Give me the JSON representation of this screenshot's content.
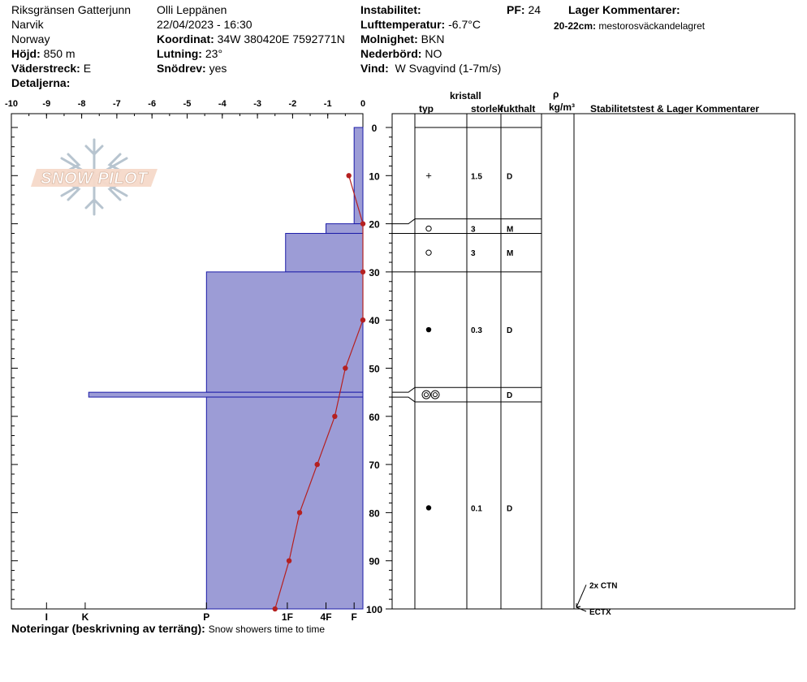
{
  "header": {
    "location": "Riksgränsen Gatterjunn",
    "region": "Narvik",
    "country": "Norway",
    "hojd_label": "Höjd:",
    "hojd_value": "850 m",
    "vaderstreck_label": "Väderstreck:",
    "vaderstreck_value": "E",
    "detaljerna_label": "Detaljerna:",
    "observer": "Olli Leppänen",
    "datetime": "22/04/2023 - 16:30",
    "koordinat_label": "Koordinat:",
    "koordinat_value": "34W 380420E 7592771N",
    "lutning_label": "Lutning:",
    "lutning_value": "23°",
    "snodrev_label": "Snödrev:",
    "snodrev_value": "yes",
    "instabilitet_label": "Instabilitet:",
    "lufttemperatur_label": "Lufttemperatur:",
    "lufttemperatur_value": "-6.7°C",
    "molnighet_label": "Molnighet:",
    "molnighet_value": "BKN",
    "nederbord_label": "Nederbörd:",
    "nederbord_value": "NO",
    "vind_label": "Vind:",
    "vind_value": "W Svagvind (1-7m/s)",
    "pf_label": "PF:",
    "pf_value": "24",
    "lager_kommentarer_label": "Lager Kommentarer:",
    "lager_kommentar_depth": "20-22cm:",
    "lager_kommentar_text": "mestorosväckandelagret"
  },
  "logo": {
    "text": "SNOW PILOT"
  },
  "table_headers": {
    "kristall": "kristall",
    "typ": "typ",
    "storlek": "storlek",
    "fukthalt": "fukthalt",
    "rho": "ρ",
    "density_unit": "kg/m³",
    "stabilitet": "Stabilitetstest & Lager Kommentarer"
  },
  "footer": {
    "noteringar_label": "Noteringar (beskrivning av terräng):",
    "noteringar_value": "Snow showers time to time"
  },
  "chart_data": {
    "type": "snow-profile",
    "temperature_axis": {
      "label": "",
      "ticks": [
        -10,
        -9,
        -8,
        -7,
        -6,
        -5,
        -4,
        -3,
        -2,
        -1,
        0
      ],
      "range": [
        -10,
        0
      ]
    },
    "depth_axis": {
      "range": [
        0,
        100
      ],
      "ticks": [
        0,
        10,
        20,
        30,
        40,
        50,
        60,
        70,
        80,
        90,
        100
      ]
    },
    "hardness_axis": {
      "labels": [
        "I",
        "K",
        "P",
        "1F",
        "4F",
        "F"
      ]
    },
    "temperature_profile": [
      {
        "depth": 10,
        "temp": -0.4
      },
      {
        "depth": 20,
        "temp": 0
      },
      {
        "depth": 30,
        "temp": 0
      },
      {
        "depth": 40,
        "temp": 0
      },
      {
        "depth": 50,
        "temp": -0.5
      },
      {
        "depth": 60,
        "temp": -0.8
      },
      {
        "depth": 70,
        "temp": -1.3
      },
      {
        "depth": 80,
        "temp": -1.8
      },
      {
        "depth": 90,
        "temp": -2.1
      },
      {
        "depth": 100,
        "temp": -2.5
      }
    ],
    "hardness_profile": [
      {
        "top": 0,
        "bottom": 20,
        "hardness": -0.25
      },
      {
        "top": 20,
        "bottom": 22,
        "hardness": -1.05
      },
      {
        "top": 22,
        "bottom": 30,
        "hardness": -2.2
      },
      {
        "top": 30,
        "bottom": 55,
        "hardness": -4.45
      },
      {
        "top": 55,
        "bottom": 56,
        "hardness": -7.8
      },
      {
        "top": 56,
        "bottom": 100,
        "hardness": -4.45
      }
    ],
    "layer_boundaries": [
      0,
      19,
      22,
      30,
      54,
      57,
      100
    ],
    "layers": [
      {
        "depth": 10,
        "type": "+",
        "size": "1.5",
        "moisture": "D"
      },
      {
        "depth": 21,
        "type": "○",
        "size": "3",
        "moisture": "M"
      },
      {
        "depth": 26,
        "type": "○",
        "size": "3",
        "moisture": "M"
      },
      {
        "depth": 42,
        "type": "●",
        "size": "0.3",
        "moisture": "D"
      },
      {
        "depth": 55.5,
        "type": "◎◎",
        "size": "",
        "moisture": "D"
      },
      {
        "depth": 79,
        "type": "●",
        "size": "0.1",
        "moisture": "D"
      }
    ],
    "stability_tests": [
      {
        "text": "2x CTN",
        "depth": 96
      },
      {
        "text": "ECTX",
        "depth": 100
      }
    ],
    "colors": {
      "hardness_fill": "#9c9cd6",
      "hardness_edge": "#1c1ca8",
      "temperature": "#b52020"
    }
  }
}
